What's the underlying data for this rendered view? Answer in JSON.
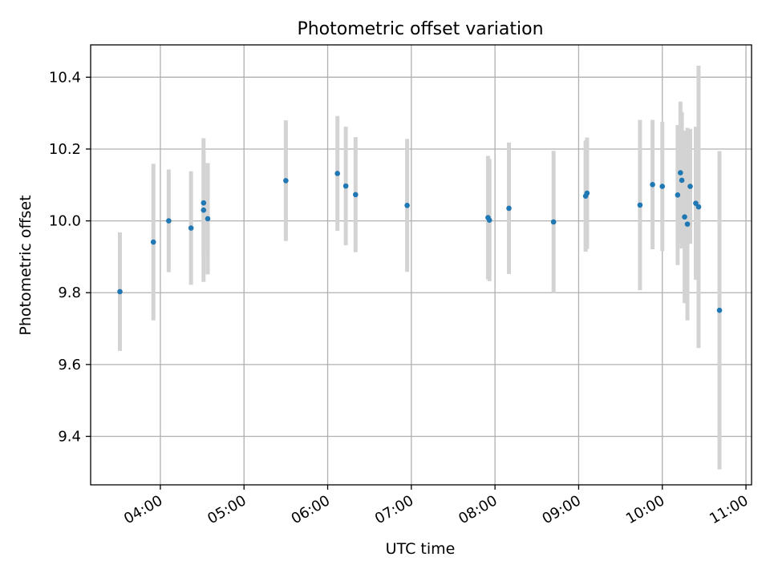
{
  "chart_data": {
    "type": "scatter",
    "title": "Photometric offset variation",
    "xlabel": "UTC time",
    "ylabel": "Photometric offset",
    "x_axis_type": "time",
    "xlim": [
      "03:10",
      "11:04"
    ],
    "ylim": [
      9.265,
      10.49
    ],
    "grid": true,
    "x_ticks": [
      "04:00",
      "05:00",
      "06:00",
      "07:00",
      "08:00",
      "09:00",
      "10:00",
      "11:00"
    ],
    "y_ticks": [
      9.4,
      9.6,
      9.8,
      10.0,
      10.2,
      10.4
    ],
    "y_tick_labels": [
      "9.4",
      "9.6",
      "9.8",
      "10.0",
      "10.2",
      "10.4"
    ],
    "colors": {
      "points": "#1f77b4",
      "error_bars": "#d3d3d3",
      "grid": "#b0b0b0"
    },
    "points": [
      {
        "x": "03:31",
        "y": 9.803,
        "err": 0.165
      },
      {
        "x": "03:55",
        "y": 9.941,
        "err": 0.218
      },
      {
        "x": "04:06",
        "y": 10.0,
        "err": 0.143
      },
      {
        "x": "04:22",
        "y": 9.98,
        "err": 0.158
      },
      {
        "x": "04:31",
        "y": 10.05,
        "err": 0.145
      },
      {
        "x": "04:31",
        "y": 10.03,
        "err": 0.2
      },
      {
        "x": "04:34",
        "y": 10.006,
        "err": 0.155
      },
      {
        "x": "05:30",
        "y": 10.112,
        "err": 0.168
      },
      {
        "x": "06:07",
        "y": 10.132,
        "err": 0.16
      },
      {
        "x": "06:13",
        "y": 10.097,
        "err": 0.165
      },
      {
        "x": "06:20",
        "y": 10.073,
        "err": 0.16
      },
      {
        "x": "06:57",
        "y": 10.043,
        "err": 0.185
      },
      {
        "x": "07:55",
        "y": 10.009,
        "err": 0.172
      },
      {
        "x": "07:56",
        "y": 10.002,
        "err": 0.17
      },
      {
        "x": "08:10",
        "y": 10.035,
        "err": 0.183
      },
      {
        "x": "08:42",
        "y": 9.997,
        "err": 0.198
      },
      {
        "x": "09:05",
        "y": 10.069,
        "err": 0.155
      },
      {
        "x": "09:06",
        "y": 10.077,
        "err": 0.155
      },
      {
        "x": "09:44",
        "y": 10.044,
        "err": 0.237
      },
      {
        "x": "09:53",
        "y": 10.101,
        "err": 0.18
      },
      {
        "x": "10:00",
        "y": 10.096,
        "err": 0.18
      },
      {
        "x": "10:11",
        "y": 10.072,
        "err": 0.195
      },
      {
        "x": "10:13",
        "y": 10.134,
        "err": 0.198
      },
      {
        "x": "10:14",
        "y": 10.113,
        "err": 0.19
      },
      {
        "x": "10:16",
        "y": 10.011,
        "err": 0.24
      },
      {
        "x": "10:18",
        "y": 9.991,
        "err": 0.268
      },
      {
        "x": "10:20",
        "y": 10.096,
        "err": 0.16
      },
      {
        "x": "10:24",
        "y": 10.049,
        "err": 0.213
      },
      {
        "x": "10:26",
        "y": 10.039,
        "err": 0.393
      },
      {
        "x": "10:41",
        "y": 9.751,
        "err": 0.443
      }
    ]
  }
}
